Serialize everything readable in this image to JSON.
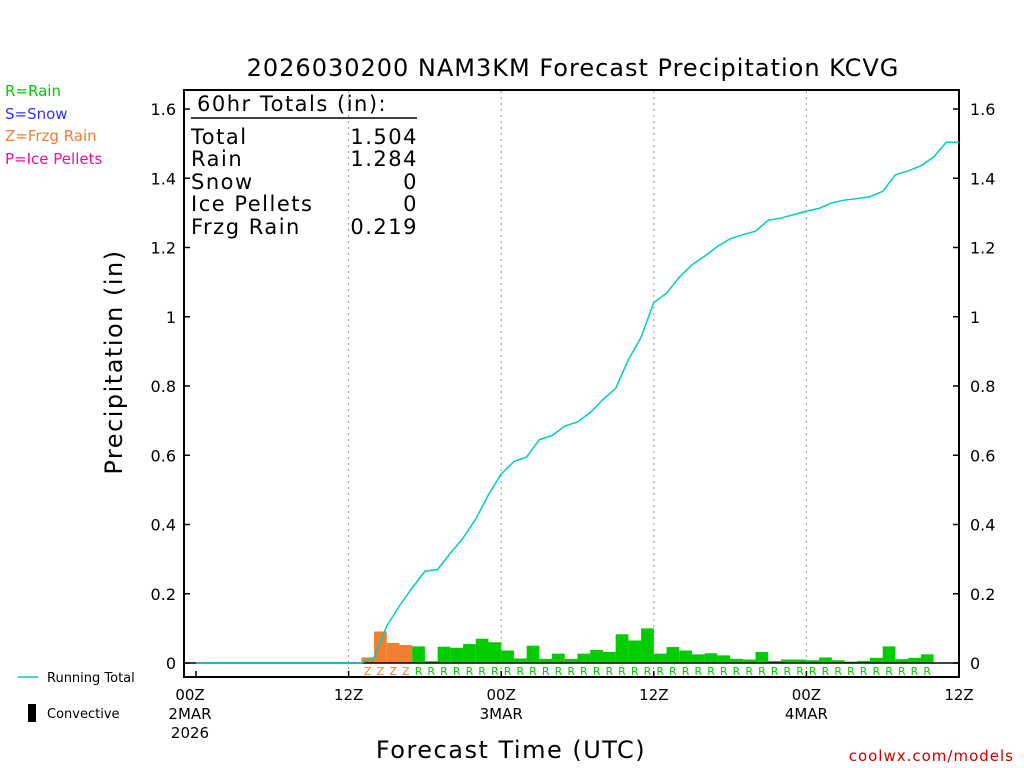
{
  "chart_data": {
    "type": "bar",
    "title": "2026030200 NAM3KM Forecast Precipitation KCVG",
    "ylabel": "Precipitation (in)",
    "xlabel": "Forecast Time (UTC)",
    "credit": "coolwx.com/models",
    "ylim": [
      -0.04,
      1.655
    ],
    "xlim": [
      0,
      60
    ],
    "yticks": [
      0,
      0.2,
      0.4,
      0.6,
      0.8,
      1,
      1.2,
      1.4,
      1.6
    ],
    "ytick_labels": [
      "0",
      "0.2",
      "0.4",
      "0.6",
      "0.8",
      "1",
      "1.2",
      "1.4",
      "1.6"
    ],
    "xticks": [
      {
        "hour": 0,
        "lines": [
          "00Z",
          "2MAR",
          "2026"
        ]
      },
      {
        "hour": 12,
        "lines": [
          "12Z"
        ]
      },
      {
        "hour": 24,
        "lines": [
          "00Z",
          "3MAR"
        ]
      },
      {
        "hour": 36,
        "lines": [
          "12Z"
        ]
      },
      {
        "hour": 48,
        "lines": [
          "00Z",
          "4MAR"
        ]
      },
      {
        "hour": 60,
        "lines": [
          "12Z"
        ]
      }
    ],
    "gridlines_x": [
      12,
      24,
      36,
      48
    ],
    "type_legend": [
      {
        "code": "R",
        "label": "R=Rain",
        "color": "#00cc00"
      },
      {
        "code": "S",
        "label": "S=Snow",
        "color": "#3333ff"
      },
      {
        "code": "Z",
        "label": "Z=Frzg Rain",
        "color": "#f08030"
      },
      {
        "code": "P",
        "label": "P=Ice Pellets",
        "color": "#ee1199"
      }
    ],
    "series_legend": [
      {
        "label": "Running Total",
        "color": "#00cccc"
      },
      {
        "label": "Convective",
        "color": "#000000"
      }
    ],
    "totals_box": {
      "header": "60hr Totals (in):",
      "rows": [
        {
          "label": "Total",
          "value": "1.504"
        },
        {
          "label": "Rain",
          "value": "1.284"
        },
        {
          "label": "Snow",
          "value": "0"
        },
        {
          "label": "Ice Pellets",
          "value": "0"
        },
        {
          "label": "Frzg Rain",
          "value": "0.219"
        }
      ]
    },
    "bars": [
      {
        "hour": 14,
        "value": 0.016,
        "type": "Z"
      },
      {
        "hour": 15,
        "value": 0.091,
        "type": "Z"
      },
      {
        "hour": 16,
        "value": 0.058,
        "type": "Z"
      },
      {
        "hour": 17,
        "value": 0.052,
        "type": "Z"
      },
      {
        "hour": 18,
        "value": 0.048,
        "type": "R"
      },
      {
        "hour": 19,
        "value": 0.005,
        "type": "R"
      },
      {
        "hour": 20,
        "value": 0.047,
        "type": "R"
      },
      {
        "hour": 21,
        "value": 0.044,
        "type": "R"
      },
      {
        "hour": 22,
        "value": 0.055,
        "type": "R"
      },
      {
        "hour": 23,
        "value": 0.07,
        "type": "R"
      },
      {
        "hour": 24,
        "value": 0.06,
        "type": "R"
      },
      {
        "hour": 25,
        "value": 0.036,
        "type": "R"
      },
      {
        "hour": 26,
        "value": 0.013,
        "type": "R"
      },
      {
        "hour": 27,
        "value": 0.05,
        "type": "R"
      },
      {
        "hour": 28,
        "value": 0.012,
        "type": "R"
      },
      {
        "hour": 29,
        "value": 0.027,
        "type": "R"
      },
      {
        "hour": 30,
        "value": 0.012,
        "type": "R"
      },
      {
        "hour": 31,
        "value": 0.027,
        "type": "R"
      },
      {
        "hour": 32,
        "value": 0.038,
        "type": "R"
      },
      {
        "hour": 33,
        "value": 0.032,
        "type": "R"
      },
      {
        "hour": 34,
        "value": 0.083,
        "type": "R"
      },
      {
        "hour": 35,
        "value": 0.065,
        "type": "R"
      },
      {
        "hour": 36,
        "value": 0.1,
        "type": "R"
      },
      {
        "hour": 37,
        "value": 0.027,
        "type": "R"
      },
      {
        "hour": 38,
        "value": 0.046,
        "type": "R"
      },
      {
        "hour": 39,
        "value": 0.036,
        "type": "R"
      },
      {
        "hour": 40,
        "value": 0.025,
        "type": "R"
      },
      {
        "hour": 41,
        "value": 0.028,
        "type": "R"
      },
      {
        "hour": 42,
        "value": 0.022,
        "type": "R"
      },
      {
        "hour": 43,
        "value": 0.012,
        "type": "R"
      },
      {
        "hour": 44,
        "value": 0.01,
        "type": "R"
      },
      {
        "hour": 45,
        "value": 0.032,
        "type": "R"
      },
      {
        "hour": 46,
        "value": 0.006,
        "type": "R"
      },
      {
        "hour": 47,
        "value": 0.01,
        "type": "R"
      },
      {
        "hour": 48,
        "value": 0.01,
        "type": "R"
      },
      {
        "hour": 49,
        "value": 0.008,
        "type": "R"
      },
      {
        "hour": 50,
        "value": 0.016,
        "type": "R"
      },
      {
        "hour": 51,
        "value": 0.008,
        "type": "R"
      },
      {
        "hour": 52,
        "value": 0.004,
        "type": "R"
      },
      {
        "hour": 53,
        "value": 0.006,
        "type": "R"
      },
      {
        "hour": 54,
        "value": 0.015,
        "type": "R"
      },
      {
        "hour": 55,
        "value": 0.048,
        "type": "R"
      },
      {
        "hour": 56,
        "value": 0.011,
        "type": "R"
      },
      {
        "hour": 57,
        "value": 0.015,
        "type": "R"
      },
      {
        "hour": 58,
        "value": 0.025,
        "type": "R"
      }
    ],
    "running_total": {
      "x": [
        0,
        12,
        13,
        14,
        15,
        16,
        17,
        18,
        19,
        20,
        21,
        22,
        23,
        24,
        25,
        26,
        27,
        28,
        29,
        30,
        31,
        32,
        33,
        34,
        35,
        36,
        37,
        38,
        39,
        40,
        41,
        42,
        43,
        44,
        45,
        46,
        47,
        48,
        49,
        50,
        51,
        52,
        53,
        54,
        55,
        56,
        57,
        58,
        59,
        60
      ],
      "y": [
        0,
        0,
        0,
        0.016,
        0.107,
        0.165,
        0.217,
        0.265,
        0.27,
        0.317,
        0.361,
        0.416,
        0.486,
        0.546,
        0.582,
        0.595,
        0.645,
        0.657,
        0.684,
        0.696,
        0.723,
        0.761,
        0.793,
        0.876,
        0.941,
        1.041,
        1.068,
        1.114,
        1.15,
        1.175,
        1.203,
        1.225,
        1.237,
        1.247,
        1.279,
        1.285,
        1.295,
        1.305,
        1.313,
        1.329,
        1.337,
        1.341,
        1.347,
        1.362,
        1.41,
        1.421,
        1.436,
        1.461,
        1.504,
        1.504
      ]
    }
  }
}
